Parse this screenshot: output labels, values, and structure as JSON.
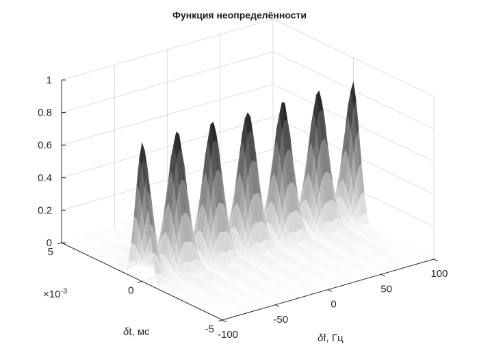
{
  "chart_data": {
    "type": "surface",
    "title": "Функция неопределённости",
    "xlabel_prefix": "δ",
    "xlabel_rest": "f, Гц",
    "ylabel_prefix": "δ",
    "ylabel_rest": "t, мс",
    "zlabel": "",
    "x_ticks": [
      "-100",
      "-50",
      "0",
      "50",
      "100"
    ],
    "x_tick_values": [
      -100,
      -50,
      0,
      50,
      100
    ],
    "xlim": [
      -100,
      100
    ],
    "y_ticks": [
      "-5",
      "0",
      "5"
    ],
    "y_tick_values": [
      -5,
      0,
      5
    ],
    "ylim": [
      -5,
      5
    ],
    "y_exponent_base": "×10",
    "y_exponent_power": "-3",
    "z_ticks": [
      "0",
      "0.2",
      "0.4",
      "0.6",
      "0.8",
      "1"
    ],
    "z_tick_values": [
      0,
      0.2,
      0.4,
      0.6,
      0.8,
      1
    ],
    "zlim": [
      0,
      1
    ],
    "grid": true,
    "colormap": "gray",
    "peaks": {
      "x_spacing": 33.3,
      "x_positions": [
        -100,
        -66.7,
        -33.3,
        0,
        33.3,
        66.7,
        100
      ],
      "y_position": 0,
      "heights": [
        0.85,
        0.85,
        0.85,
        0.85,
        0.85,
        0.85,
        0.85
      ]
    }
  }
}
